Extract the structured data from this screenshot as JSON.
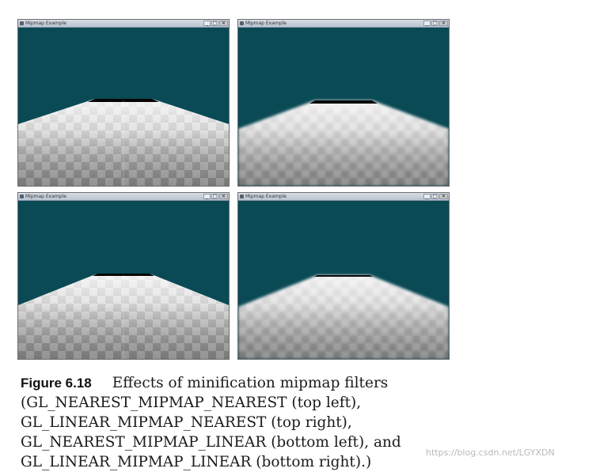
{
  "windows": [
    {
      "title": "Mipmap Example",
      "position": "top-left",
      "filter": "GL_NEAREST_MIPMAP_NEAREST",
      "sharp": true
    },
    {
      "title": "Mipmap Example",
      "position": "top-right",
      "filter": "GL_LINEAR_MIPMAP_NEAREST",
      "sharp": false
    },
    {
      "title": "Mipmap Example",
      "position": "bottom-left",
      "filter": "GL_NEAREST_MIPMAP_LINEAR",
      "sharp": true
    },
    {
      "title": "Mipmap Example",
      "position": "bottom-right",
      "filter": "GL_LINEAR_MIPMAP_LINEAR",
      "sharp": false
    }
  ],
  "window_controls": {
    "minimize": "_",
    "maximize": "□",
    "close": "✕"
  },
  "colors": {
    "sky": "#0a4a55",
    "road_light": "#eeeeee",
    "road_dark": "#6f6f6f"
  },
  "caption": {
    "label": "Figure 6.18",
    "text": "Effects of minification mipmap filters (GL_NEAREST_MIPMAP_NEAREST (top left), GL_LINEAR_MIPMAP_NEAREST (top right), GL_NEAREST_MIPMAP_LINEAR (bottom left), and GL_LINEAR_MIPMAP_LINEAR (bottom right).)"
  },
  "watermark": "https://blog.csdn.net/LGYXDN"
}
